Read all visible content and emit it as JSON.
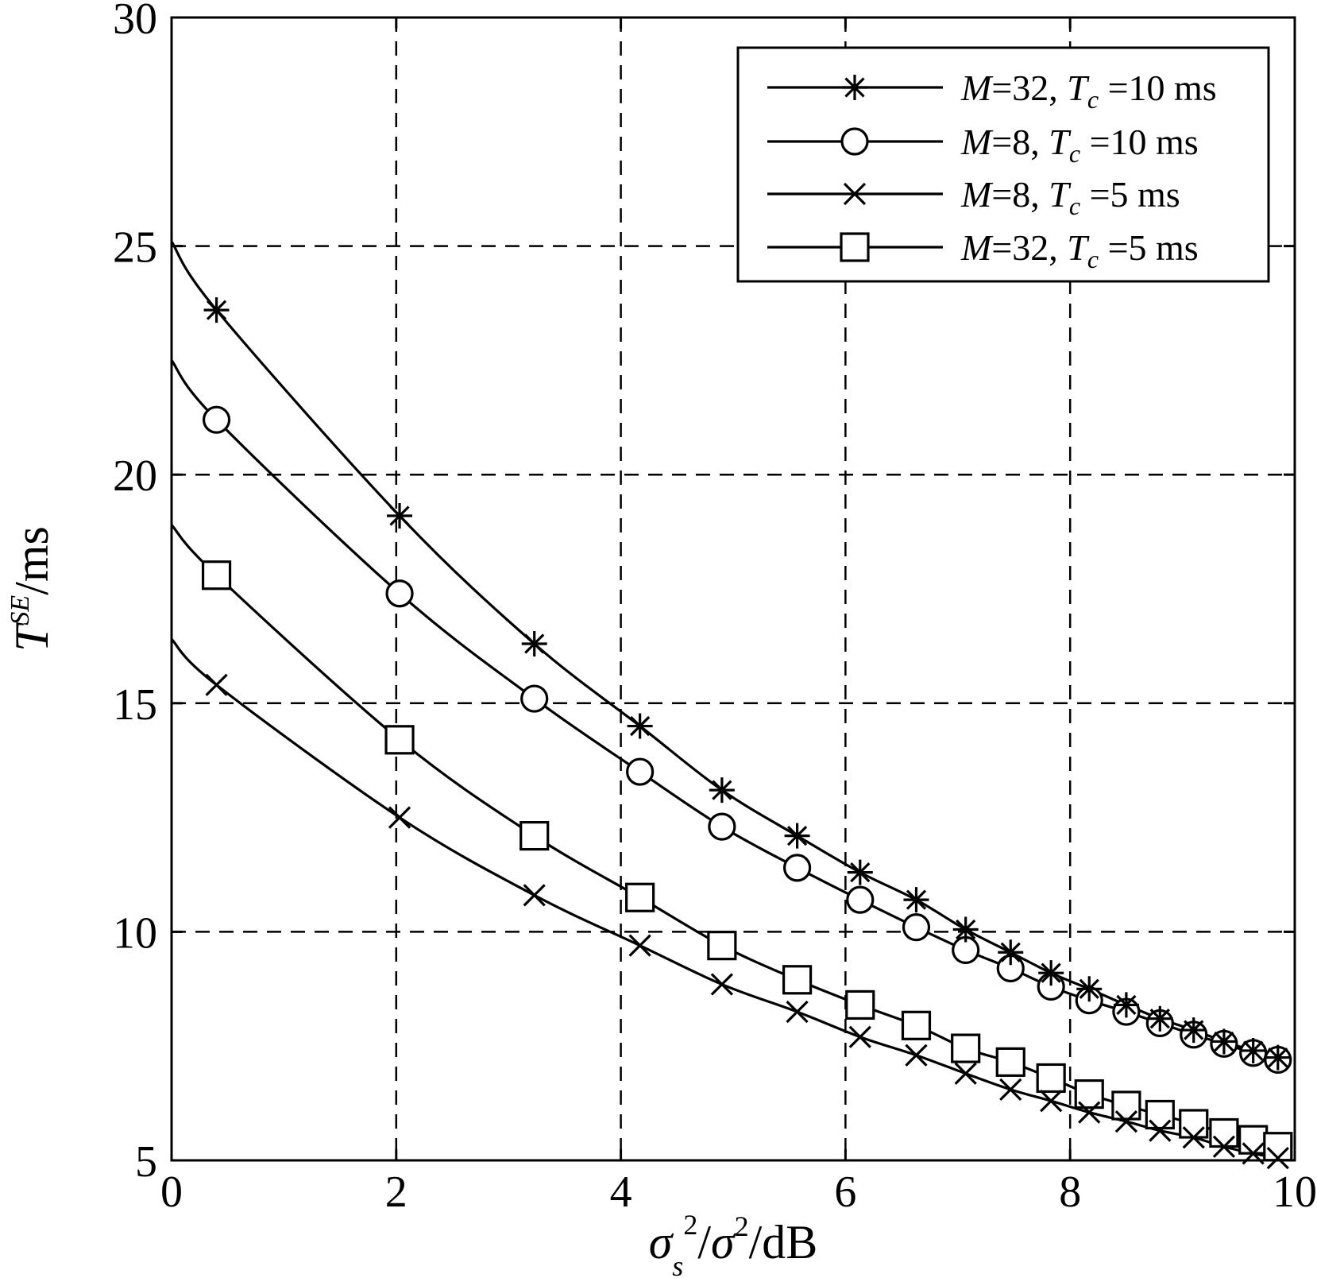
{
  "chart_data": {
    "type": "line",
    "title": "",
    "xlabel": "σ_s²/σ²/dB",
    "xlabel_parts": {
      "sym": "σ",
      "sub": "s",
      "sup": "2",
      "sep": "/",
      "sym2": "σ",
      "sup2": "2",
      "unit": "/dB"
    },
    "ylabel": "T^SE/ms",
    "ylabel_parts": {
      "base": "T",
      "sup": "SE",
      "unit": "/ms"
    },
    "xlim": [
      0,
      10
    ],
    "ylim": [
      5,
      30
    ],
    "xticks": [
      0,
      2,
      4,
      6,
      8,
      10
    ],
    "yticks": [
      5,
      10,
      15,
      20,
      25,
      30
    ],
    "xtick_labels": [
      "0",
      "2",
      "4",
      "6",
      "8",
      "10"
    ],
    "ytick_labels": [
      "5",
      "10",
      "15",
      "20",
      "25",
      "30"
    ],
    "grid": true,
    "legend_position": "top-right",
    "series": [
      {
        "name": "M=32, Tc =10 ms",
        "legend": {
          "m": "M",
          "mval": "=32, ",
          "t": "T",
          "tsub": "c",
          "rest": " =10 ms"
        },
        "marker": "asterisk",
        "curve_x": [
          0,
          0.4,
          2.03,
          3.23,
          4.17,
          4.9,
          5.57,
          6.13,
          6.63,
          7.07,
          7.47,
          7.83,
          8.17,
          8.5,
          8.8,
          9.1,
          9.37,
          9.63,
          9.85
        ],
        "curve_y": [
          25.1,
          23.6,
          19.1,
          16.3,
          14.5,
          13.1,
          12.1,
          11.3,
          10.7,
          10.05,
          9.55,
          9.1,
          8.75,
          8.4,
          8.1,
          7.85,
          7.6,
          7.4,
          7.25
        ],
        "marker_x": [
          0.4,
          2.03,
          3.23,
          4.17,
          4.9,
          5.57,
          6.13,
          6.63,
          7.07,
          7.47,
          7.83,
          8.17,
          8.5,
          8.8,
          9.1,
          9.37,
          9.63,
          9.85
        ],
        "marker_y": [
          23.6,
          19.1,
          16.3,
          14.5,
          13.1,
          12.1,
          11.3,
          10.7,
          10.05,
          9.55,
          9.1,
          8.75,
          8.4,
          8.1,
          7.85,
          7.6,
          7.4,
          7.25
        ]
      },
      {
        "name": "M=8, Tc =10 ms",
        "legend": {
          "m": "M",
          "mval": "=8, ",
          "t": "T",
          "tsub": "c",
          "rest": " =10 ms"
        },
        "marker": "circle",
        "curve_x": [
          0,
          0.4,
          2.03,
          3.23,
          4.17,
          4.9,
          5.57,
          6.13,
          6.63,
          7.07,
          7.47,
          7.83,
          8.17,
          8.5,
          8.8,
          9.1,
          9.37,
          9.63,
          9.85
        ],
        "curve_y": [
          22.5,
          21.2,
          17.4,
          15.1,
          13.5,
          12.3,
          11.4,
          10.7,
          10.1,
          9.6,
          9.2,
          8.8,
          8.5,
          8.25,
          8.0,
          7.75,
          7.55,
          7.35,
          7.2
        ],
        "marker_x": [
          0.4,
          2.03,
          3.23,
          4.17,
          4.9,
          5.57,
          6.13,
          6.63,
          7.07,
          7.47,
          7.83,
          8.17,
          8.5,
          8.8,
          9.1,
          9.37,
          9.63,
          9.85
        ],
        "marker_y": [
          21.2,
          17.4,
          15.1,
          13.5,
          12.3,
          11.4,
          10.7,
          10.1,
          9.6,
          9.2,
          8.8,
          8.5,
          8.25,
          8.0,
          7.75,
          7.55,
          7.35,
          7.2
        ]
      },
      {
        "name": "M=8, Tc =5 ms",
        "legend": {
          "m": "M",
          "mval": "=8, ",
          "t": "T",
          "tsub": "c",
          "rest": " =5 ms"
        },
        "marker": "x",
        "curve_x": [
          0,
          0.4,
          2.03,
          3.23,
          4.17,
          4.9,
          5.57,
          6.13,
          6.63,
          7.07,
          7.47,
          7.83,
          8.17,
          8.5,
          8.8,
          9.1,
          9.37,
          9.63,
          9.85
        ],
        "curve_y": [
          16.4,
          15.4,
          12.5,
          10.8,
          9.7,
          8.85,
          8.25,
          7.7,
          7.3,
          6.9,
          6.55,
          6.3,
          6.05,
          5.85,
          5.65,
          5.5,
          5.3,
          5.15,
          5.05
        ],
        "marker_x": [
          0.4,
          2.03,
          3.23,
          4.17,
          4.9,
          5.57,
          6.13,
          6.63,
          7.07,
          7.47,
          7.83,
          8.17,
          8.5,
          8.8,
          9.1,
          9.37,
          9.63,
          9.85
        ],
        "marker_y": [
          15.4,
          12.5,
          10.8,
          9.7,
          8.85,
          8.25,
          7.7,
          7.3,
          6.9,
          6.55,
          6.3,
          6.05,
          5.85,
          5.65,
          5.5,
          5.3,
          5.15,
          5.05
        ]
      },
      {
        "name": "M=32, Tc =5 ms",
        "legend": {
          "m": "M",
          "mval": "=32, ",
          "t": "T",
          "tsub": "c",
          "rest": " =5 ms"
        },
        "marker": "square",
        "curve_x": [
          0,
          0.4,
          2.03,
          3.23,
          4.17,
          4.9,
          5.57,
          6.13,
          6.63,
          7.07,
          7.47,
          7.83,
          8.17,
          8.5,
          8.8,
          9.1,
          9.37,
          9.63,
          9.85
        ],
        "curve_y": [
          18.9,
          17.8,
          14.2,
          12.1,
          10.75,
          9.7,
          8.95,
          8.4,
          7.95,
          7.45,
          7.15,
          6.8,
          6.45,
          6.2,
          6.0,
          5.8,
          5.6,
          5.45,
          5.3
        ],
        "marker_x": [
          0.4,
          2.03,
          3.23,
          4.17,
          4.9,
          5.57,
          6.13,
          6.63,
          7.07,
          7.47,
          7.83,
          8.17,
          8.5,
          8.8,
          9.1,
          9.37,
          9.63,
          9.85
        ],
        "marker_y": [
          17.8,
          14.2,
          12.1,
          10.75,
          9.7,
          8.95,
          8.4,
          7.95,
          7.45,
          7.15,
          6.8,
          6.45,
          6.2,
          6.0,
          5.8,
          5.6,
          5.45,
          5.3
        ]
      }
    ]
  }
}
